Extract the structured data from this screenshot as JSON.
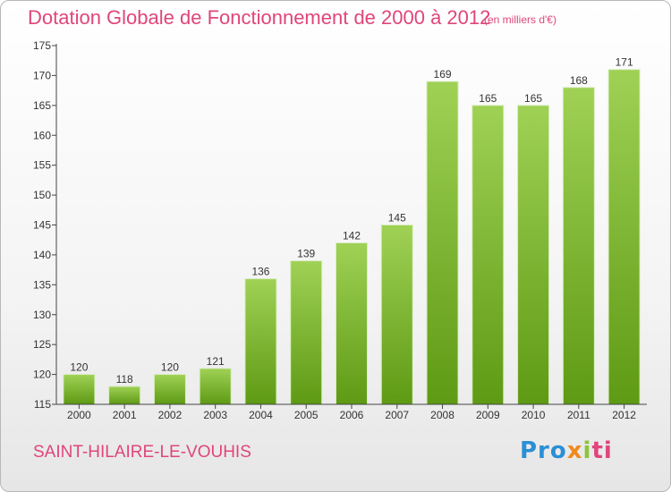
{
  "header": {
    "title": "Dotation Globale de Fonctionnement de 2000 à 2012",
    "subtitle": "(en milliers d'€)"
  },
  "footer": {
    "place": "SAINT-HILAIRE-LE-VOUHIS",
    "logo_parts": [
      "Pro",
      "x",
      "i",
      "ti"
    ]
  },
  "colors": {
    "title": "#e0457b",
    "bar_top": "#9fd155",
    "bar_bottom": "#5e9a14",
    "axis": "#444444",
    "grid": "#dddddd"
  },
  "chart_data": {
    "type": "bar",
    "categories": [
      "2000",
      "2001",
      "2002",
      "2003",
      "2004",
      "2005",
      "2006",
      "2007",
      "2008",
      "2009",
      "2010",
      "2011",
      "2012"
    ],
    "values": [
      120,
      118,
      120,
      121,
      136,
      139,
      142,
      145,
      169,
      165,
      165,
      168,
      171
    ],
    "ylim": [
      115,
      175
    ],
    "yticks": [
      115,
      120,
      125,
      130,
      135,
      140,
      145,
      150,
      155,
      160,
      165,
      170,
      175
    ],
    "title": "Dotation Globale de Fonctionnement de 2000 à 2012",
    "xlabel": "",
    "ylabel": "",
    "grid": false,
    "data_labels": true
  }
}
